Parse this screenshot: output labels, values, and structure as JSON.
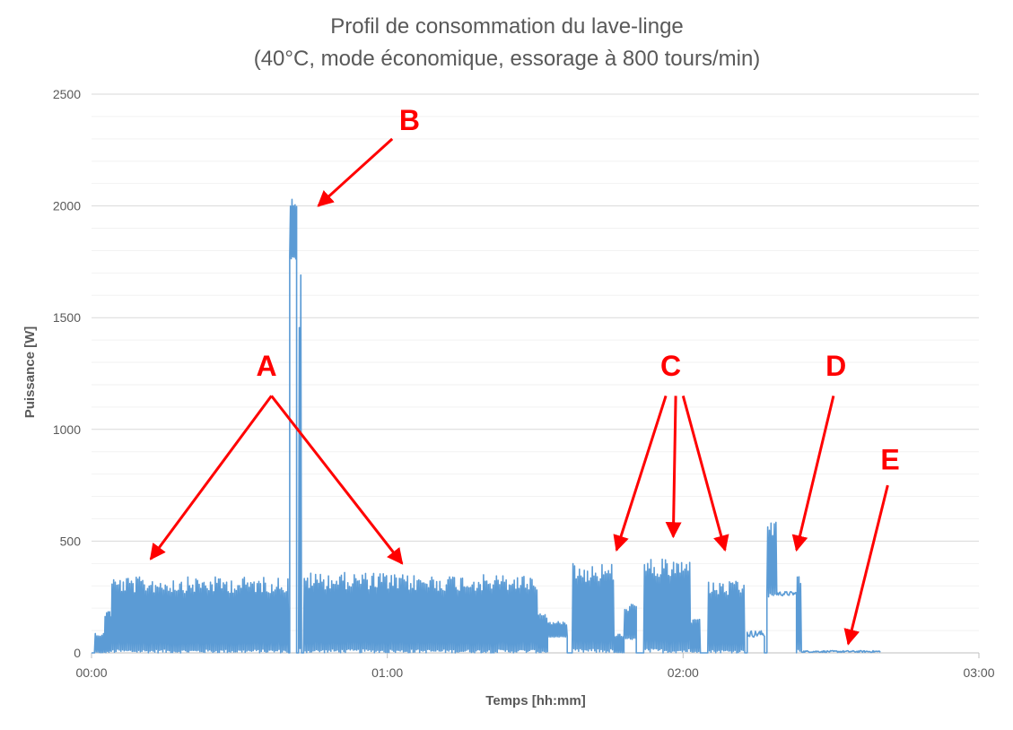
{
  "chart_data": {
    "type": "line",
    "title_line1": "Profil de consommation du lave-linge",
    "title_line2": "(40°C, mode économique, essorage à 800 tours/min)",
    "xlabel": "Temps [hh:mm]",
    "ylabel": "Puissance [W]",
    "xlim_minutes": [
      0,
      180
    ],
    "ylim": [
      0,
      2500
    ],
    "grid": "horizontal",
    "line_color": "#5b9bd5",
    "annotation_color": "#ff0000",
    "x_ticks": [
      {
        "minutes": 0,
        "label": "00:00"
      },
      {
        "minutes": 60,
        "label": "01:00"
      },
      {
        "minutes": 120,
        "label": "02:00"
      },
      {
        "minutes": 180,
        "label": "03:00"
      }
    ],
    "y_ticks": [
      {
        "value": 0,
        "label": "0"
      },
      {
        "value": 500,
        "label": "500"
      },
      {
        "value": 1000,
        "label": "1000"
      },
      {
        "value": 1500,
        "label": "1500"
      },
      {
        "value": 2000,
        "label": "2000"
      },
      {
        "value": 2500,
        "label": "2500"
      }
    ],
    "series": [
      {
        "segments": [
          {
            "start_minute": 0.0,
            "end_minute": 0.6,
            "low": 0,
            "high": 0
          },
          {
            "start_minute": 0.6,
            "end_minute": 2.6,
            "low": 0,
            "high": 90
          },
          {
            "start_minute": 2.6,
            "end_minute": 4.0,
            "low": 0,
            "high": 200
          },
          {
            "start_minute": 4.0,
            "end_minute": 40.0,
            "low": 0,
            "high": 340
          },
          {
            "start_minute": 40.2,
            "end_minute": 41.6,
            "low": 1760,
            "high": 2050
          },
          {
            "start_minute": 42.0,
            "end_minute": 42.6,
            "low": 0,
            "high": 1750
          },
          {
            "start_minute": 43.0,
            "end_minute": 60.0,
            "low": 0,
            "high": 360
          },
          {
            "start_minute": 60.0,
            "end_minute": 90.5,
            "low": 0,
            "high": 350
          },
          {
            "start_minute": 90.5,
            "end_minute": 92.5,
            "low": 0,
            "high": 180
          },
          {
            "start_minute": 92.5,
            "end_minute": 96.5,
            "low": 70,
            "high": 140
          },
          {
            "start_minute": 97.5,
            "end_minute": 106.0,
            "low": 0,
            "high": 400
          },
          {
            "start_minute": 106.0,
            "end_minute": 108.0,
            "low": 0,
            "high": 90
          },
          {
            "start_minute": 108.0,
            "end_minute": 110.5,
            "low": 60,
            "high": 220
          },
          {
            "start_minute": 112.0,
            "end_minute": 121.5,
            "low": 0,
            "high": 420
          },
          {
            "start_minute": 121.5,
            "end_minute": 123.5,
            "low": 0,
            "high": 150
          },
          {
            "start_minute": 125.0,
            "end_minute": 132.5,
            "low": 0,
            "high": 320
          },
          {
            "start_minute": 133.0,
            "end_minute": 136.5,
            "low": 70,
            "high": 100
          },
          {
            "start_minute": 137.0,
            "end_minute": 139.0,
            "low": 250,
            "high": 600
          },
          {
            "start_minute": 139.0,
            "end_minute": 143.0,
            "low": 255,
            "high": 275
          },
          {
            "start_minute": 143.0,
            "end_minute": 144.0,
            "low": 0,
            "high": 390
          },
          {
            "start_minute": 144.0,
            "end_minute": 160.0,
            "low": 2,
            "high": 10
          }
        ]
      }
    ],
    "annotations": [
      {
        "label": "A",
        "text_x": 35.5,
        "text_y": 1240,
        "arrows": [
          {
            "from": [
              36.5,
              1150
            ],
            "to": [
              12,
              420
            ]
          },
          {
            "from": [
              36.5,
              1150
            ],
            "to": [
              63,
              400
            ]
          }
        ]
      },
      {
        "label": "B",
        "text_x": 64.5,
        "text_y": 2340,
        "arrows": [
          {
            "from": [
              61,
              2300
            ],
            "to": [
              46,
              2000
            ]
          }
        ]
      },
      {
        "label": "C",
        "text_x": 117.5,
        "text_y": 1240,
        "arrows": [
          {
            "from": [
              116.5,
              1150
            ],
            "to": [
              106.5,
              460
            ]
          },
          {
            "from": [
              118.5,
              1150
            ],
            "to": [
              118,
              520
            ]
          },
          {
            "from": [
              120,
              1150
            ],
            "to": [
              128.5,
              460
            ]
          }
        ]
      },
      {
        "label": "D",
        "text_x": 151,
        "text_y": 1240,
        "arrows": [
          {
            "from": [
              150.5,
              1150
            ],
            "to": [
              143,
              460
            ]
          }
        ]
      },
      {
        "label": "E",
        "text_x": 162,
        "text_y": 820,
        "arrows": [
          {
            "from": [
              161.5,
              750
            ],
            "to": [
              153.5,
              40
            ]
          }
        ]
      }
    ]
  }
}
